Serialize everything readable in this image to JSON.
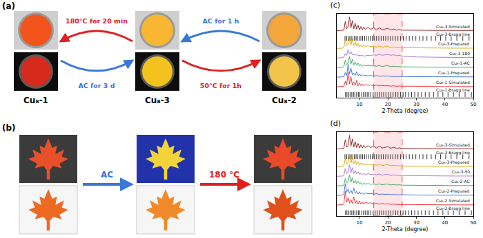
{
  "figure": {
    "panel_a": {
      "label": "(a)",
      "samples": [
        "Cu₈-1",
        "Cu₈-3",
        "Cu₈-2"
      ],
      "arrows": [
        "180°C for 20 min",
        "AC for 3 d",
        "AC for 1 h",
        "50°C for 1h"
      ]
    },
    "panel_b": {
      "label": "(b)",
      "arrows": [
        "AC",
        "180 °C"
      ]
    }
  },
  "chart_data": [
    {
      "type": "line",
      "title": "(c)",
      "x_label": "2-Theta (degree)",
      "xlim": [
        2,
        50
      ],
      "xticks": [
        10,
        20,
        30,
        40,
        50
      ],
      "ylim": [
        0,
        9.2
      ],
      "tick_labels": "x",
      "grid": false,
      "highlight_x": [
        15,
        25
      ],
      "x": [
        2,
        3,
        4,
        4.5,
        5,
        5.5,
        6,
        6.5,
        7,
        7.5,
        8,
        8.5,
        9,
        9.5,
        10,
        10.5,
        11,
        11.5,
        12,
        13,
        14,
        15,
        16,
        17,
        18,
        19,
        20,
        21,
        22,
        23,
        24,
        25,
        27,
        30,
        33,
        36,
        40,
        44,
        48,
        50
      ],
      "series": [
        {
          "name": "Cu₈-3-Simulated",
          "type": "scatter",
          "color": "#8b1010",
          "values": [
            7.35,
            7.35,
            7.37,
            7.4,
            8.35,
            7.55,
            7.75,
            8.85,
            7.65,
            8.45,
            7.55,
            8.15,
            7.5,
            7.95,
            7.45,
            7.8,
            7.45,
            7.75,
            7.5,
            7.7,
            7.5,
            7.65,
            7.45,
            7.65,
            7.45,
            7.55,
            7.6,
            7.43,
            7.53,
            7.41,
            7.47,
            7.4,
            7.41,
            7.4,
            7.39,
            7.38,
            7.38,
            7.37,
            7.37,
            7.37
          ]
        },
        {
          "name": "Cu₈-3-Bragg line",
          "type": "scatter",
          "marker": "tick",
          "color": "#000000",
          "x": [
            4.9,
            5.5,
            6,
            6.6,
            7.1,
            7.7,
            8.2,
            8.8,
            9.3,
            9.9,
            10.5,
            11.1,
            11.8,
            12.4,
            13.1,
            13.8,
            14.5,
            15.3,
            16,
            16.8,
            17.6,
            18.4,
            19.2,
            20,
            20.9,
            21.7,
            22.6,
            23.5,
            24.4,
            25.4,
            26.4,
            27.5,
            28.6,
            29.8,
            31,
            32.3,
            33.7,
            35.2,
            36.8,
            38.5,
            40.3,
            42.2,
            44.2,
            46.3,
            48.5
          ],
          "values": [
            6.5,
            6.5,
            6.5,
            6.5,
            6.5,
            6.5,
            6.5,
            6.5,
            6.5,
            6.5,
            6.5,
            6.5,
            6.5,
            6.5,
            6.5,
            6.5,
            6.5,
            6.5,
            6.5,
            6.5,
            6.5,
            6.5,
            6.5,
            6.5,
            6.5,
            6.5,
            6.5,
            6.5,
            6.5,
            6.5,
            6.5,
            6.5,
            6.5,
            6.5,
            6.5,
            6.5,
            6.5,
            6.5,
            6.5,
            6.5,
            6.5,
            6.5,
            6.5,
            6.5,
            6.5
          ]
        },
        {
          "name": "Cu₈-3-Prepared",
          "type": "scatter",
          "color": "#d9a400",
          "values": [
            5.4,
            5.4,
            5.43,
            5.5,
            6.3,
            5.7,
            5.9,
            6.7,
            5.8,
            6.4,
            5.7,
            6.1,
            5.65,
            5.95,
            5.6,
            5.8,
            5.55,
            5.75,
            5.6,
            5.7,
            5.6,
            5.65,
            5.55,
            5.68,
            5.52,
            5.6,
            5.62,
            5.5,
            5.56,
            5.5,
            5.52,
            5.48,
            5.47,
            5.46,
            5.45,
            5.44,
            5.44,
            5.43,
            5.43,
            5.43
          ]
        },
        {
          "name": "Cu₈-3-180",
          "type": "scatter",
          "color": "#a070d0",
          "values": [
            4.35,
            4.35,
            4.4,
            4.45,
            4.85,
            4.65,
            5.25,
            4.75,
            5.05,
            4.7,
            4.75,
            4.65,
            4.8,
            4.6,
            4.65,
            4.6,
            4.65,
            4.55,
            4.6,
            4.65,
            4.6,
            4.7,
            4.65,
            4.75,
            4.65,
            4.7,
            4.75,
            4.65,
            4.7,
            4.6,
            4.65,
            4.55,
            4.5,
            4.47,
            4.45,
            4.43,
            4.42,
            4.41,
            4.4,
            4.4
          ]
        },
        {
          "name": "Cu₈-1-AC",
          "type": "scatter",
          "color": "#33a05a",
          "values": [
            3.3,
            3.3,
            3.33,
            3.4,
            4.1,
            3.6,
            3.8,
            4.5,
            3.7,
            4.2,
            3.6,
            3.9,
            3.55,
            3.8,
            3.5,
            3.65,
            3.45,
            3.6,
            3.5,
            3.55,
            3.48,
            3.5,
            3.45,
            3.52,
            3.42,
            3.48,
            3.5,
            3.4,
            3.45,
            3.4,
            3.42,
            3.38,
            3.37,
            3.36,
            3.35,
            3.34,
            3.34,
            3.33,
            3.33,
            3.33
          ]
        },
        {
          "name": "Cu₈-1-Prepared",
          "type": "scatter",
          "color": "#2f6bd8",
          "values": [
            2.25,
            2.25,
            2.28,
            2.31,
            2.75,
            2.45,
            3.65,
            2.6,
            3.25,
            2.5,
            2.7,
            2.45,
            2.85,
            2.4,
            2.6,
            2.4,
            2.53,
            2.37,
            2.47,
            2.4,
            2.43,
            2.37,
            2.41,
            2.35,
            2.39,
            2.35,
            2.37,
            2.33,
            2.35,
            2.32,
            2.33,
            2.31,
            2.31,
            2.3,
            2.29,
            2.29,
            2.28,
            2.28,
            2.28,
            2.28
          ]
        },
        {
          "name": "Cu₈-1-Simulated",
          "type": "scatter",
          "color": "#e8262b",
          "values": [
            1.2,
            1.2,
            1.22,
            1.25,
            1.8,
            1.4,
            2.8,
            1.5,
            2.3,
            1.4,
            1.7,
            1.35,
            1.9,
            1.3,
            1.6,
            1.32,
            1.5,
            1.3,
            1.45,
            1.35,
            1.4,
            1.3,
            1.38,
            1.28,
            1.35,
            1.3,
            1.32,
            1.26,
            1.3,
            1.25,
            1.28,
            1.25,
            1.26,
            1.24,
            1.23,
            1.23,
            1.22,
            1.22,
            1.22,
            1.22
          ]
        },
        {
          "name": "Cu₈-1-Bragg line",
          "type": "scatter",
          "marker": "tick",
          "color": "#000000",
          "x": [
            5.1,
            5.6,
            6.2,
            6.7,
            7.3,
            7.9,
            8.4,
            9,
            9.6,
            10.1,
            10.8,
            11.4,
            12,
            12.7,
            13.3,
            14,
            14.8,
            15.5,
            16.2,
            17,
            17.8,
            18.5,
            19.3,
            20.1,
            21,
            21.8,
            22.7,
            23.5,
            24.4,
            25.3,
            26.2,
            27.2,
            28.3,
            29.4,
            30.6,
            31.8,
            33.1,
            34.5,
            36,
            37.6,
            39.3,
            41.1,
            43,
            45,
            47.1,
            49.3
          ],
          "values": [
            0.35,
            0.35,
            0.35,
            0.35,
            0.35,
            0.35,
            0.35,
            0.35,
            0.35,
            0.35,
            0.35,
            0.35,
            0.35,
            0.35,
            0.35,
            0.35,
            0.35,
            0.35,
            0.35,
            0.35,
            0.35,
            0.35,
            0.35,
            0.35,
            0.35,
            0.35,
            0.35,
            0.35,
            0.35,
            0.35,
            0.35,
            0.35,
            0.35,
            0.35,
            0.35,
            0.35,
            0.35,
            0.35,
            0.35,
            0.35,
            0.35,
            0.35,
            0.35,
            0.35,
            0.35,
            0.35
          ]
        }
      ]
    },
    {
      "type": "line",
      "title": "(d)",
      "x_label": "2-Theta (degree)",
      "xlim": [
        2,
        50
      ],
      "xticks": [
        10,
        20,
        30,
        40,
        50
      ],
      "ylim": [
        0,
        9.2
      ],
      "tick_labels": "x",
      "grid": false,
      "highlight_x": [
        15,
        25
      ],
      "x": [
        2,
        3,
        4,
        4.5,
        5,
        5.5,
        6,
        6.5,
        7,
        7.5,
        8,
        8.5,
        9,
        9.5,
        10,
        10.5,
        11,
        11.5,
        12,
        13,
        14,
        15,
        16,
        17,
        18,
        19,
        20,
        21,
        22,
        23,
        24,
        25,
        27,
        30,
        33,
        36,
        40,
        44,
        48,
        50
      ],
      "series": [
        {
          "name": "Cu₈-3-Simulated",
          "type": "scatter",
          "color": "#8b1010",
          "values": [
            7.35,
            7.35,
            7.37,
            7.4,
            8.35,
            7.55,
            7.75,
            8.85,
            7.65,
            8.45,
            7.55,
            8.15,
            7.5,
            7.95,
            7.45,
            7.8,
            7.45,
            7.75,
            7.5,
            7.7,
            7.5,
            7.65,
            7.45,
            7.65,
            7.45,
            7.55,
            7.6,
            7.43,
            7.53,
            7.41,
            7.47,
            7.4,
            7.41,
            7.4,
            7.39,
            7.38,
            7.38,
            7.37,
            7.37,
            7.37
          ]
        },
        {
          "name": "Cu₈-3-Bragg line",
          "type": "scatter",
          "marker": "tick",
          "color": "#000000",
          "x": [
            4.9,
            5.5,
            6,
            6.6,
            7.1,
            7.7,
            8.2,
            8.8,
            9.3,
            9.9,
            10.5,
            11.1,
            11.8,
            12.4,
            13.1,
            13.8,
            14.5,
            15.3,
            16,
            16.8,
            17.6,
            18.4,
            19.2,
            20,
            20.9,
            21.7,
            22.6,
            23.5,
            24.4,
            25.4,
            26.4,
            27.5,
            28.6,
            29.8,
            31,
            32.3,
            33.7,
            35.2,
            36.8,
            38.5,
            40.3,
            42.2,
            44.2,
            46.3,
            48.5
          ],
          "values": [
            6.5,
            6.5,
            6.5,
            6.5,
            6.5,
            6.5,
            6.5,
            6.5,
            6.5,
            6.5,
            6.5,
            6.5,
            6.5,
            6.5,
            6.5,
            6.5,
            6.5,
            6.5,
            6.5,
            6.5,
            6.5,
            6.5,
            6.5,
            6.5,
            6.5,
            6.5,
            6.5,
            6.5,
            6.5,
            6.5,
            6.5,
            6.5,
            6.5,
            6.5,
            6.5,
            6.5,
            6.5,
            6.5,
            6.5,
            6.5,
            6.5,
            6.5,
            6.5,
            6.5,
            6.5
          ]
        },
        {
          "name": "Cu₈-3-Prepared",
          "type": "scatter",
          "color": "#d9a400",
          "values": [
            5.4,
            5.4,
            5.43,
            5.5,
            6.3,
            5.7,
            5.9,
            6.7,
            5.8,
            6.4,
            5.7,
            6.1,
            5.65,
            5.95,
            5.6,
            5.8,
            5.55,
            5.75,
            5.6,
            5.7,
            5.6,
            5.65,
            5.55,
            5.68,
            5.52,
            5.6,
            5.62,
            5.5,
            5.56,
            5.5,
            5.52,
            5.48,
            5.47,
            5.46,
            5.45,
            5.44,
            5.44,
            5.43,
            5.43,
            5.43
          ]
        },
        {
          "name": "Cu₈-3-50",
          "type": "scatter",
          "color": "#a070d0",
          "values": [
            4.35,
            4.35,
            4.38,
            4.45,
            5.2,
            4.65,
            4.85,
            5.6,
            4.75,
            5.3,
            4.65,
            5,
            4.6,
            4.85,
            4.55,
            4.73,
            4.5,
            4.67,
            4.55,
            4.63,
            4.55,
            4.59,
            4.5,
            4.61,
            4.47,
            4.55,
            4.55,
            4.45,
            4.5,
            4.45,
            4.47,
            4.43,
            4.42,
            4.41,
            4.4,
            4.39,
            4.39,
            4.38,
            4.38,
            4.38
          ]
        },
        {
          "name": "Cu₈-2-AC",
          "type": "scatter",
          "color": "#33a05a",
          "values": [
            3.3,
            3.3,
            3.33,
            3.4,
            4.1,
            3.6,
            3.8,
            4.5,
            3.7,
            4.2,
            3.6,
            3.9,
            3.55,
            3.8,
            3.5,
            3.65,
            3.45,
            3.6,
            3.5,
            3.55,
            3.48,
            3.5,
            3.45,
            3.52,
            3.42,
            3.48,
            3.5,
            3.4,
            3.45,
            3.4,
            3.42,
            3.38,
            3.37,
            3.36,
            3.35,
            3.34,
            3.34,
            3.33,
            3.33,
            3.33
          ]
        },
        {
          "name": "Cu₈-2-Prepared",
          "type": "scatter",
          "color": "#2f6bd8",
          "values": [
            2.25,
            2.25,
            2.3,
            2.37,
            3.55,
            2.6,
            2.95,
            2.5,
            2.8,
            2.45,
            3.05,
            2.5,
            2.7,
            2.4,
            2.65,
            2.4,
            2.55,
            2.37,
            2.53,
            2.45,
            2.47,
            2.4,
            2.45,
            2.37,
            2.41,
            2.37,
            2.39,
            2.35,
            2.35,
            2.33,
            2.33,
            2.31,
            2.31,
            2.3,
            2.29,
            2.29,
            2.28,
            2.28,
            2.28,
            2.28
          ]
        },
        {
          "name": "Cu₈-2-Simulated",
          "type": "scatter",
          "color": "#e8262b",
          "values": [
            1.2,
            1.2,
            1.25,
            1.3,
            2.7,
            1.5,
            2,
            1.4,
            1.8,
            1.35,
            2.1,
            1.4,
            1.7,
            1.3,
            1.65,
            1.3,
            1.55,
            1.3,
            1.5,
            1.4,
            1.45,
            1.32,
            1.4,
            1.3,
            1.38,
            1.3,
            1.35,
            1.28,
            1.3,
            1.26,
            1.28,
            1.25,
            1.26,
            1.24,
            1.23,
            1.23,
            1.22,
            1.22,
            1.22,
            1.22
          ]
        },
        {
          "name": "Cu₈-2-Bragg line",
          "type": "scatter",
          "marker": "tick",
          "color": "#000000",
          "x": [
            5.1,
            5.6,
            6.2,
            6.7,
            7.3,
            7.9,
            8.4,
            9,
            9.6,
            10.1,
            10.8,
            11.4,
            12,
            12.7,
            13.3,
            14,
            14.8,
            15.5,
            16.2,
            17,
            17.8,
            18.5,
            19.3,
            20.1,
            21,
            21.8,
            22.7,
            23.5,
            24.4,
            25.3,
            26.2,
            27.2,
            28.3,
            29.4,
            30.6,
            31.8,
            33.1,
            34.5,
            36,
            37.6,
            39.3,
            41.1,
            43,
            45,
            47.1,
            49.3
          ],
          "values": [
            0.35,
            0.35,
            0.35,
            0.35,
            0.35,
            0.35,
            0.35,
            0.35,
            0.35,
            0.35,
            0.35,
            0.35,
            0.35,
            0.35,
            0.35,
            0.35,
            0.35,
            0.35,
            0.35,
            0.35,
            0.35,
            0.35,
            0.35,
            0.35,
            0.35,
            0.35,
            0.35,
            0.35,
            0.35,
            0.35,
            0.35,
            0.35,
            0.35,
            0.35,
            0.35,
            0.35,
            0.35,
            0.35,
            0.35,
            0.35,
            0.35,
            0.35,
            0.35,
            0.35,
            0.35,
            0.35
          ]
        }
      ]
    }
  ]
}
